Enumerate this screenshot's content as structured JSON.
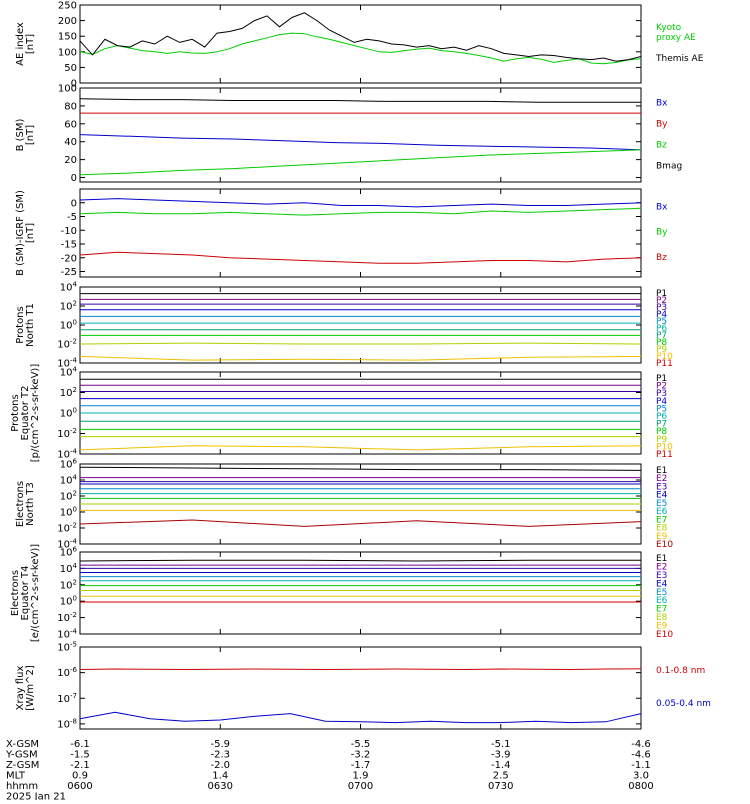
{
  "chart_data": [
    {
      "type": "line",
      "ylabel": "AE index\n[nT]",
      "ylim": [
        0,
        250
      ],
      "yticks": [
        0,
        50,
        100,
        150,
        200,
        250
      ],
      "ylog": false,
      "series": [
        {
          "name": "Kyoto\nproxy AE",
          "color": "#00cc00",
          "values": [
            100,
            92,
            110,
            120,
            112,
            104,
            100,
            95,
            100,
            96,
            95,
            100,
            110,
            125,
            135,
            145,
            155,
            160,
            158,
            148,
            140,
            130,
            120,
            110,
            100,
            98,
            104,
            108,
            112,
            104,
            100,
            95,
            88,
            80,
            70,
            78,
            82,
            76,
            66,
            72,
            78,
            64,
            62,
            66,
            74,
            78
          ]
        },
        {
          "name": "Themis AE",
          "color": "#000000",
          "values": [
            135,
            90,
            140,
            120,
            115,
            135,
            125,
            150,
            130,
            140,
            115,
            160,
            165,
            175,
            200,
            215,
            180,
            210,
            225,
            200,
            170,
            150,
            130,
            140,
            135,
            125,
            122,
            115,
            120,
            110,
            115,
            105,
            120,
            110,
            95,
            90,
            85,
            90,
            88,
            82,
            78,
            75,
            80,
            70,
            75,
            85
          ]
        }
      ]
    },
    {
      "type": "line",
      "ylabel": "B (SM)\n[nT]",
      "ylim": [
        -5,
        100
      ],
      "yticks": [
        0,
        20,
        40,
        60,
        80,
        100
      ],
      "ylog": false,
      "series": [
        {
          "name": "Bx",
          "color": "#0000cc",
          "values": [
            48,
            46,
            44,
            43,
            41,
            39,
            38,
            36,
            35,
            34,
            33,
            31
          ]
        },
        {
          "name": "By",
          "color": "#cc0000",
          "values": [
            72,
            72,
            72,
            72,
            72,
            72,
            72,
            72,
            72,
            72,
            72,
            72
          ]
        },
        {
          "name": "Bz",
          "color": "#00cc00",
          "values": [
            3,
            5,
            8,
            10,
            13,
            16,
            19,
            22,
            25,
            27,
            29,
            31
          ]
        },
        {
          "name": "Bmag",
          "color": "#000000",
          "values": [
            88,
            87,
            87,
            86,
            86,
            86,
            85,
            85,
            85,
            84,
            84,
            84
          ]
        }
      ]
    },
    {
      "type": "line",
      "ylabel": "B (SM)-IGRF (SM)\n[nT]",
      "ylim": [
        -27,
        5
      ],
      "yticks": [
        -25,
        -20,
        -15,
        -10,
        -5,
        0
      ],
      "ylog": false,
      "series": [
        {
          "name": "Bx",
          "color": "#0000cc",
          "values": [
            1,
            1.5,
            1,
            0.5,
            0,
            -0.5,
            0,
            -1,
            -1,
            -1.5,
            -1,
            -0.5,
            -1,
            -1,
            -0.5,
            0
          ]
        },
        {
          "name": "By",
          "color": "#00cc00",
          "values": [
            -4,
            -3.5,
            -4,
            -4,
            -3.5,
            -4,
            -4.5,
            -4,
            -3.5,
            -3.5,
            -4,
            -3,
            -3.5,
            -3,
            -2.5,
            -2
          ]
        },
        {
          "name": "Bz",
          "color": "#cc0000",
          "values": [
            -19,
            -18,
            -18.5,
            -19,
            -20,
            -20.5,
            -21,
            -21.5,
            -22,
            -22,
            -21.5,
            -21,
            -21,
            -21.5,
            -20.5,
            -20
          ]
        }
      ]
    },
    {
      "type": "line",
      "ylabel": "Protons\nNorth T1",
      "ylim": [
        -4,
        4
      ],
      "yticks": [
        -4,
        -2,
        0,
        2,
        4
      ],
      "ylog": true,
      "series": [
        {
          "name": "P1",
          "color": "#000000",
          "values": [
            3.3,
            3.3,
            3.3,
            3.3,
            3.3,
            3.3
          ]
        },
        {
          "name": "P2",
          "color": "#7a0087",
          "values": [
            2.7,
            2.7,
            2.7,
            2.7,
            2.7,
            2.7
          ]
        },
        {
          "name": "P3",
          "color": "#3a00a0",
          "values": [
            2.2,
            2.2,
            2.2,
            2.2,
            2.2,
            2.2
          ]
        },
        {
          "name": "P4",
          "color": "#0000cc",
          "values": [
            1.6,
            1.6,
            1.6,
            1.6,
            1.6,
            1.6
          ]
        },
        {
          "name": "P5",
          "color": "#0088cc",
          "values": [
            0.9,
            0.9,
            0.9,
            0.9,
            0.9,
            0.9
          ]
        },
        {
          "name": "P6",
          "color": "#00b0b0",
          "values": [
            0.2,
            0.2,
            0.2,
            0.2,
            0.2,
            0.2
          ]
        },
        {
          "name": "P7",
          "color": "#00a070",
          "values": [
            -0.5,
            -0.5,
            -0.5,
            -0.5,
            -0.5,
            -0.5
          ]
        },
        {
          "name": "P8",
          "color": "#00cc00",
          "values": [
            -1.1,
            -1.1,
            -1.1,
            -1.1,
            -1.1,
            -1.1
          ]
        },
        {
          "name": "P9",
          "color": "#b0d000",
          "values": [
            -2,
            -1.9,
            -2,
            -2,
            -1.9,
            -2
          ]
        },
        {
          "name": "P10",
          "color": "#f0c000",
          "values": [
            -3.3,
            -3.7,
            -3.6,
            -3.7,
            -3.4,
            -3.3
          ]
        },
        {
          "name": "P11",
          "color": "#cc0000",
          "values": []
        }
      ]
    },
    {
      "type": "line",
      "ylabel": "Protons\nEquator T2\n[p/(cm^2-s-sr-keV)]",
      "ylim": [
        -4,
        4
      ],
      "yticks": [
        -4,
        -2,
        0,
        2,
        4
      ],
      "ylog": true,
      "series": [
        {
          "name": "P1",
          "color": "#000000",
          "values": [
            3.3,
            3.3,
            3.3,
            3.3,
            3.3,
            3.3
          ]
        },
        {
          "name": "P2",
          "color": "#7a0087",
          "values": [
            2.7,
            2.7,
            2.7,
            2.7,
            2.7,
            2.7
          ]
        },
        {
          "name": "P3",
          "color": "#3a00a0",
          "values": [
            2.1,
            2.1,
            2.1,
            2.1,
            2.1,
            2.1
          ]
        },
        {
          "name": "P4",
          "color": "#0000cc",
          "values": [
            1.4,
            1.4,
            1.4,
            1.4,
            1.4,
            1.4
          ]
        },
        {
          "name": "P5",
          "color": "#0088cc",
          "values": [
            0.7,
            0.7,
            0.7,
            0.7,
            0.7,
            0.7
          ]
        },
        {
          "name": "P6",
          "color": "#00b0b0",
          "values": [
            0.0,
            0.0,
            0.0,
            0.0,
            0.0,
            0.0
          ]
        },
        {
          "name": "P7",
          "color": "#00a070",
          "values": [
            -0.8,
            -0.8,
            -0.8,
            -0.8,
            -0.8,
            -0.8
          ]
        },
        {
          "name": "P8",
          "color": "#00cc00",
          "values": [
            -1.6,
            -1.6,
            -1.6,
            -1.6,
            -1.6,
            -1.6
          ]
        },
        {
          "name": "P9",
          "color": "#b0d000",
          "values": [
            -2.3,
            -2.3,
            -2.3,
            -2.3,
            -2.3,
            -2.3
          ]
        },
        {
          "name": "P10",
          "color": "#f0c000",
          "values": [
            -3.6,
            -3.2,
            -3.3,
            -3.6,
            -3.3,
            -3.2
          ]
        },
        {
          "name": "P11",
          "color": "#cc0000",
          "values": []
        }
      ]
    },
    {
      "type": "line",
      "ylabel": "Electrons\nNorth T3",
      "ylim": [
        -4,
        6
      ],
      "yticks": [
        -4,
        -2,
        0,
        2,
        4,
        6
      ],
      "ylog": true,
      "series": [
        {
          "name": "E1",
          "color": "#000000",
          "values": [
            5.6,
            5.5,
            5.4,
            5.3,
            5.3,
            5.2
          ]
        },
        {
          "name": "E2",
          "color": "#7a0087",
          "values": [
            4.3,
            4.3,
            4.3,
            4.3,
            4.3,
            4.3
          ]
        },
        {
          "name": "E3",
          "color": "#3a00a0",
          "values": [
            3.8,
            3.8,
            3.8,
            3.8,
            3.8,
            3.8
          ]
        },
        {
          "name": "E4",
          "color": "#0000cc",
          "values": [
            3.5,
            3.5,
            3.5,
            3.5,
            3.5,
            3.5
          ]
        },
        {
          "name": "E5",
          "color": "#0088cc",
          "values": [
            2.9,
            2.9,
            2.9,
            2.9,
            2.9,
            2.9
          ]
        },
        {
          "name": "E6",
          "color": "#00b0b0",
          "values": [
            2.3,
            2.3,
            2.3,
            2.3,
            2.3,
            2.3
          ]
        },
        {
          "name": "E7",
          "color": "#00cc00",
          "values": [
            1.7,
            1.7,
            1.7,
            1.7,
            1.7,
            1.7
          ]
        },
        {
          "name": "E8",
          "color": "#b0d000",
          "values": [
            1.0,
            1.0,
            1.0,
            1.0,
            1.0,
            1.0
          ]
        },
        {
          "name": "E9",
          "color": "#f0c000",
          "values": [
            0.2,
            0.2,
            0.2,
            0.2,
            0.2,
            0.2
          ]
        },
        {
          "name": "E10",
          "color": "#aa0000",
          "values": [
            -1.5,
            -1.0,
            -1.8,
            -1.1,
            -1.8,
            -1.2
          ]
        }
      ]
    },
    {
      "type": "line",
      "ylabel": "Electrons\nEquator T4\n[e/(cm^2-s-sr-keV)]",
      "ylim": [
        -4,
        6
      ],
      "yticks": [
        -4,
        -2,
        0,
        2,
        4,
        6
      ],
      "ylog": true,
      "series": [
        {
          "name": "E1",
          "color": "#000000",
          "values": [
            4.9,
            5.0,
            5.0,
            4.9,
            5.0,
            5.0
          ]
        },
        {
          "name": "E2",
          "color": "#7a0087",
          "values": [
            4.4,
            4.4,
            4.4,
            4.4,
            4.4,
            4.4
          ]
        },
        {
          "name": "E3",
          "color": "#3a00a0",
          "values": [
            4.0,
            4.0,
            4.0,
            4.0,
            4.0,
            4.0
          ]
        },
        {
          "name": "E4",
          "color": "#0000cc",
          "values": [
            3.5,
            3.5,
            3.5,
            3.5,
            3.5,
            3.5
          ]
        },
        {
          "name": "E5",
          "color": "#0088cc",
          "values": [
            3.0,
            3.0,
            3.0,
            3.0,
            3.0,
            3.0
          ]
        },
        {
          "name": "E6",
          "color": "#00b0b0",
          "values": [
            2.5,
            2.5,
            2.5,
            2.5,
            2.5,
            2.5
          ]
        },
        {
          "name": "E7",
          "color": "#00cc00",
          "values": [
            1.9,
            1.9,
            1.9,
            1.9,
            1.9,
            1.9
          ]
        },
        {
          "name": "E8",
          "color": "#b0d000",
          "values": [
            1.3,
            1.3,
            1.3,
            1.3,
            1.3,
            1.3
          ]
        },
        {
          "name": "E9",
          "color": "#f0c000",
          "values": [
            0.6,
            0.6,
            0.6,
            0.6,
            0.6,
            0.6
          ]
        },
        {
          "name": "E10",
          "color": "#cc0000",
          "values": [
            -0.1,
            -0.1,
            -0.1,
            -0.1,
            -0.1,
            -0.1
          ]
        }
      ]
    },
    {
      "type": "line",
      "ylabel": "Xray flux\n[W/m^2]",
      "ylim": [
        -8.2,
        -5
      ],
      "yticks": [
        -8,
        -7,
        -6,
        -5
      ],
      "ylog": true,
      "series": [
        {
          "name": "0.1-0.8 nm",
          "color": "#cc0000",
          "values": [
            -5.88,
            -5.86,
            -5.87,
            -5.88,
            -5.87,
            -5.86,
            -5.87,
            -5.88,
            -5.87,
            -5.86,
            -5.87,
            -5.88,
            -5.86,
            -5.87,
            -5.88,
            -5.86,
            -5.85
          ]
        },
        {
          "name": "0.05-0.4 nm",
          "color": "#0000cc",
          "values": [
            -7.8,
            -7.55,
            -7.8,
            -7.9,
            -7.85,
            -7.7,
            -7.6,
            -7.9,
            -7.92,
            -7.95,
            -7.9,
            -7.95,
            -7.95,
            -7.9,
            -7.95,
            -7.92,
            -7.6
          ]
        }
      ]
    }
  ],
  "footer": {
    "rows": [
      {
        "label": "X-GSM",
        "values": [
          "-6.1",
          "-5.9",
          "-5.5",
          "-5.1",
          "-4.6"
        ]
      },
      {
        "label": "Y-GSM",
        "values": [
          "-1.5",
          "-2.3",
          "-3.2",
          "-3.9",
          "-4.6"
        ]
      },
      {
        "label": "Z-GSM",
        "values": [
          "-2.1",
          "-2.0",
          "-1.7",
          "-1.4",
          "-1.1"
        ]
      },
      {
        "label": "MLT",
        "values": [
          "0.9",
          "1.4",
          "1.9",
          "2.5",
          "3.0"
        ]
      },
      {
        "label": "hhmm",
        "values": [
          "0600",
          "0630",
          "0700",
          "0730",
          "0800"
        ]
      }
    ],
    "date": "2025 Jan 21"
  }
}
